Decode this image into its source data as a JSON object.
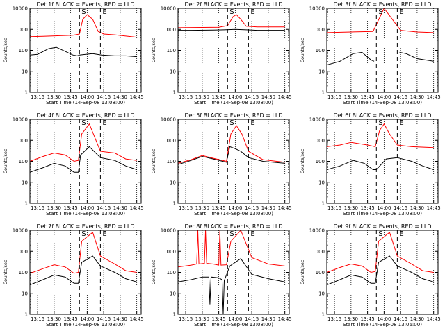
{
  "colors": {
    "events": "#000000",
    "lld": "#ff0000",
    "background": "#ffffff"
  },
  "chart_data": [
    {
      "type": "line",
      "title": "Det 1f BLACK = Events, RED = LLD",
      "xlabel": "Start Time (14-Sep-08 13:08:00)",
      "ylabel": "Counts/sec",
      "ylim": [
        1,
        10000
      ],
      "yscale": "log",
      "xticks": [
        "13:15",
        "13:30",
        "13:45",
        "14:00",
        "14:15",
        "14:30",
        "14:45"
      ],
      "yticks": [
        "1",
        "10",
        "100",
        "1000",
        "10000"
      ],
      "markers": [
        {
          "label": "S",
          "time": "13:53"
        },
        {
          "label": "E",
          "time": "14:12"
        }
      ],
      "series": [
        {
          "name": "BLACK = Events",
          "color": "#000000",
          "x": [
            "13:08",
            "13:15",
            "13:25",
            "13:32",
            "13:40",
            "13:47",
            "13:51",
            "13:53",
            "14:05",
            "14:13",
            "14:25",
            "14:35",
            "14:45"
          ],
          "y": [
            60,
            65,
            120,
            140,
            90,
            60,
            55,
            60,
            70,
            60,
            55,
            55,
            50
          ]
        },
        {
          "name": "RED = LLD",
          "color": "#ff0000",
          "x": [
            "13:08",
            "13:20",
            "13:35",
            "13:47",
            "13:53",
            "13:56",
            "14:00",
            "14:05",
            "14:10",
            "14:15",
            "14:25",
            "14:35",
            "14:45"
          ],
          "y": [
            450,
            470,
            500,
            520,
            600,
            3000,
            5000,
            3000,
            800,
            600,
            550,
            480,
            420
          ]
        }
      ]
    },
    {
      "type": "line",
      "title": "Det 2f BLACK = Events, RED = LLD",
      "xlabel": "Start Time (14-Sep-08 13:08:00)",
      "ylabel": "Counts/sec",
      "ylim": [
        1,
        10000
      ],
      "yscale": "log",
      "xticks": [
        "13:15",
        "13:30",
        "13:45",
        "14:00",
        "14:15",
        "14:30",
        "14:45"
      ],
      "yticks": [
        "1",
        "10",
        "100",
        "1000",
        "10000"
      ],
      "markers": [
        {
          "label": "S",
          "time": "13:53"
        },
        {
          "label": "E",
          "time": "14:12"
        }
      ],
      "series": [
        {
          "name": "BLACK = Events",
          "color": "#000000",
          "x": [
            "13:08",
            "13:20",
            "13:40",
            "13:50",
            "14:00",
            "14:10",
            "14:20",
            "14:45"
          ],
          "y": [
            900,
            900,
            920,
            950,
            1000,
            950,
            900,
            900
          ]
        },
        {
          "name": "RED = LLD",
          "color": "#ff0000",
          "x": [
            "13:08",
            "13:45",
            "13:53",
            "13:58",
            "14:01",
            "14:05",
            "14:10",
            "14:20",
            "14:45"
          ],
          "y": [
            1200,
            1250,
            1500,
            4000,
            5000,
            3000,
            1400,
            1300,
            1300
          ]
        }
      ]
    },
    {
      "type": "line",
      "title": "Det 3f BLACK = Events, RED = LLD",
      "xlabel": "Start Time (14-Sep-08 13:08:00)",
      "ylabel": "Counts/sec",
      "ylim": [
        1,
        10000
      ],
      "yscale": "log",
      "xticks": [
        "13:15",
        "13:30",
        "13:45",
        "14:00",
        "14:15",
        "14:30",
        "14:45"
      ],
      "yticks": [
        "1",
        "10",
        "100",
        "1000",
        "10000"
      ],
      "markers": [
        {
          "label": "S",
          "time": "13:53"
        },
        {
          "label": "E",
          "time": "14:12"
        }
      ],
      "series": [
        {
          "name": "BLACK = Events",
          "color": "#000000",
          "x": [
            "13:08",
            "13:20",
            "13:32",
            "13:40",
            "13:48",
            "13:51"
          ],
          "y": [
            20,
            30,
            70,
            80,
            35,
            30
          ],
          "x2": [
            "14:14",
            "14:20",
            "14:30",
            "14:45"
          ],
          "y2": [
            80,
            70,
            40,
            30
          ]
        },
        {
          "name": "RED = LLD",
          "color": "#ff0000",
          "x": [
            "13:08",
            "13:30",
            "13:50",
            "14:00",
            "14:15",
            "14:30",
            "14:45"
          ],
          "y": [
            700,
            750,
            800,
            10000,
            900,
            750,
            700
          ]
        }
      ]
    },
    {
      "type": "line",
      "title": "Det 4f BLACK = Events, RED = LLD",
      "xlabel": "Start Time (14-Sep-08 13:08:00)",
      "ylabel": "Counts/sec",
      "ylim": [
        1,
        10000
      ],
      "yscale": "log",
      "xticks": [
        "13:15",
        "13:30",
        "13:45",
        "14:00",
        "14:15",
        "14:30",
        "14:45"
      ],
      "yticks": [
        "1",
        "10",
        "100",
        "1000",
        "10000"
      ],
      "markers": [
        {
          "label": "S",
          "time": "13:53"
        },
        {
          "label": "E",
          "time": "14:12"
        }
      ],
      "series": [
        {
          "name": "BLACK = Events",
          "color": "#000000",
          "x": [
            "13:08",
            "13:20",
            "13:30",
            "13:40",
            "13:48",
            "13:52",
            "13:54",
            "14:02",
            "14:12",
            "14:25",
            "14:35",
            "14:45"
          ],
          "y": [
            30,
            50,
            80,
            60,
            30,
            30,
            200,
            500,
            150,
            110,
            60,
            40
          ]
        },
        {
          "name": "RED = LLD",
          "color": "#ff0000",
          "x": [
            "13:08",
            "13:20",
            "13:30",
            "13:40",
            "13:48",
            "13:52",
            "13:55",
            "14:02",
            "14:12",
            "14:25",
            "14:35",
            "14:45"
          ],
          "y": [
            100,
            170,
            250,
            200,
            100,
            110,
            2000,
            6000,
            300,
            250,
            130,
            110
          ]
        }
      ]
    },
    {
      "type": "line",
      "title": "Det 5f BLACK = Events, RED = LLD",
      "xlabel": "Start Time (14-Sep-08 13:08:00)",
      "ylabel": "Counts/sec",
      "ylim": [
        1,
        10000
      ],
      "yscale": "log",
      "xticks": [
        "13:15",
        "13:30",
        "13:45",
        "14:00",
        "14:15",
        "14:30",
        "14:45"
      ],
      "yticks": [
        "1",
        "10",
        "100",
        "1000",
        "10000"
      ],
      "markers": [
        {
          "label": "S",
          "time": "13:53"
        },
        {
          "label": "E",
          "time": "14:12"
        }
      ],
      "series": [
        {
          "name": "BLACK = Events",
          "color": "#000000",
          "x": [
            "13:08",
            "13:20",
            "13:30",
            "13:40",
            "13:52",
            "13:55",
            "14:00",
            "14:05",
            "14:12",
            "14:25",
            "14:45"
          ],
          "y": [
            70,
            110,
            170,
            130,
            90,
            500,
            400,
            300,
            150,
            100,
            80
          ]
        },
        {
          "name": "RED = LLD",
          "color": "#ff0000",
          "x": [
            "13:08",
            "13:20",
            "13:30",
            "13:40",
            "13:52",
            "13:56",
            "14:01",
            "14:06",
            "14:12",
            "14:25",
            "14:45"
          ],
          "y": [
            80,
            120,
            190,
            140,
            100,
            2000,
            5000,
            2000,
            300,
            120,
            90
          ]
        }
      ]
    },
    {
      "type": "line",
      "title": "Det 6f BLACK = Events, RED = LLD",
      "xlabel": "Start Time (14-Sep-08 13:08:00)",
      "ylabel": "Counts/sec",
      "ylim": [
        1,
        10000
      ],
      "yscale": "log",
      "xticks": [
        "13:15",
        "13:30",
        "13:45",
        "14:00",
        "14:15",
        "14:30",
        "14:45"
      ],
      "yticks": [
        "1",
        "10",
        "100",
        "1000",
        "10000"
      ],
      "markers": [
        {
          "label": "S",
          "time": "13:53"
        },
        {
          "label": "E",
          "time": "14:12"
        }
      ],
      "series": [
        {
          "name": "BLACK = Events",
          "color": "#000000",
          "x": [
            "13:08",
            "13:20",
            "13:32",
            "13:42",
            "13:50",
            "13:53",
            "14:02",
            "14:12",
            "14:25",
            "14:35",
            "14:45"
          ],
          "y": [
            40,
            60,
            110,
            80,
            40,
            40,
            130,
            150,
            100,
            60,
            40
          ]
        },
        {
          "name": "RED = LLD",
          "color": "#ff0000",
          "x": [
            "13:08",
            "13:20",
            "13:30",
            "13:45",
            "13:52",
            "13:56",
            "14:00",
            "14:05",
            "14:12",
            "14:25",
            "14:45"
          ],
          "y": [
            500,
            600,
            800,
            600,
            500,
            3000,
            6000,
            2000,
            600,
            500,
            450
          ]
        }
      ]
    },
    {
      "type": "line",
      "title": "Det 7f BLACK = Events, RED = LLD",
      "xlabel": "Start Time (14-Sep-08 13:08:00)",
      "ylabel": "Counts/sec",
      "ylim": [
        1,
        10000
      ],
      "yscale": "log",
      "xticks": [
        "13:15",
        "13:30",
        "13:45",
        "14:00",
        "14:15",
        "14:30",
        "14:45"
      ],
      "yticks": [
        "1",
        "10",
        "100",
        "1000",
        "10000"
      ],
      "markers": [
        {
          "label": "S",
          "time": "13:53"
        },
        {
          "label": "E",
          "time": "14:12"
        }
      ],
      "series": [
        {
          "name": "BLACK = Events",
          "color": "#000000",
          "x": [
            "13:08",
            "13:20",
            "13:30",
            "13:40",
            "13:48",
            "13:52",
            "13:55",
            "14:05",
            "14:12",
            "14:25",
            "14:35",
            "14:45"
          ],
          "y": [
            25,
            45,
            75,
            60,
            30,
            30,
            300,
            600,
            200,
            100,
            50,
            35
          ]
        },
        {
          "name": "RED = LLD",
          "color": "#ff0000",
          "x": [
            "13:08",
            "13:20",
            "13:30",
            "13:40",
            "13:48",
            "13:52",
            "13:55",
            "14:05",
            "14:12",
            "14:25",
            "14:35",
            "14:45"
          ],
          "y": [
            90,
            150,
            230,
            180,
            90,
            100,
            3000,
            8000,
            600,
            250,
            120,
            100
          ]
        }
      ]
    },
    {
      "type": "line",
      "title": "Det 8f BLACK = Events, RED = LLD",
      "xlabel": "Start Time (14-Sep-08 13:08:00)",
      "ylabel": "Counts/sec",
      "ylim": [
        1,
        10000
      ],
      "yscale": "log",
      "xticks": [
        "13:15",
        "13:30",
        "13:45",
        "14:00",
        "14:15",
        "14:30",
        "14:45"
      ],
      "yticks": [
        "1",
        "10",
        "100",
        "1000",
        "10000"
      ],
      "markers": [
        {
          "label": "S",
          "time": "13:53"
        },
        {
          "label": "E",
          "time": "14:12"
        }
      ],
      "series": [
        {
          "name": "BLACK = Events",
          "color": "#000000",
          "x": [
            "13:08",
            "13:20",
            "13:30",
            "13:36",
            "13:37",
            "13:38",
            "13:45",
            "13:48",
            "13:49",
            "13:50",
            "13:55",
            "14:05",
            "14:15",
            "14:30",
            "14:45"
          ],
          "y": [
            35,
            45,
            60,
            60,
            3,
            60,
            55,
            45,
            1,
            40,
            200,
            450,
            80,
            50,
            35
          ]
        },
        {
          "name": "RED = LLD",
          "color": "#ff0000",
          "x": [
            "13:08",
            "13:20",
            "13:25",
            "13:26",
            "13:27",
            "13:30",
            "13:32",
            "13:33",
            "13:34",
            "13:40",
            "13:45",
            "13:46",
            "13:47",
            "13:52",
            "13:56",
            "14:05",
            "14:15",
            "14:30",
            "14:45"
          ],
          "y": [
            180,
            220,
            250,
            10000,
            250,
            260,
            270,
            10000,
            270,
            250,
            220,
            10000,
            220,
            230,
            3000,
            10000,
            500,
            250,
            200
          ]
        }
      ]
    },
    {
      "type": "line",
      "title": "Det 9f BLACK = Events, RED = LLD",
      "xlabel": "Start Time (14-Sep-08 13:06:00)",
      "ylabel": "Counts/sec",
      "ylim": [
        1,
        10000
      ],
      "yscale": "log",
      "xticks": [
        "13:15",
        "13:30",
        "13:45",
        "14:00",
        "14:15",
        "14:30",
        "14:45"
      ],
      "yticks": [
        "1",
        "10",
        "100",
        "1000",
        "10000"
      ],
      "markers": [
        {
          "label": "S",
          "time": "13:53"
        },
        {
          "label": "E",
          "time": "14:12"
        }
      ],
      "series": [
        {
          "name": "BLACK = Events",
          "color": "#000000",
          "x": [
            "13:08",
            "13:20",
            "13:30",
            "13:40",
            "13:48",
            "13:52",
            "13:55",
            "14:05",
            "14:12",
            "14:25",
            "14:35",
            "14:45"
          ],
          "y": [
            25,
            45,
            75,
            60,
            30,
            30,
            300,
            600,
            200,
            100,
            50,
            35
          ]
        },
        {
          "name": "RED = LLD",
          "color": "#ff0000",
          "x": [
            "13:08",
            "13:20",
            "13:30",
            "13:40",
            "13:48",
            "13:52",
            "13:55",
            "14:05",
            "14:12",
            "14:25",
            "14:35",
            "14:45"
          ],
          "y": [
            100,
            170,
            250,
            200,
            100,
            110,
            3000,
            8000,
            600,
            250,
            120,
            100
          ]
        }
      ]
    }
  ]
}
